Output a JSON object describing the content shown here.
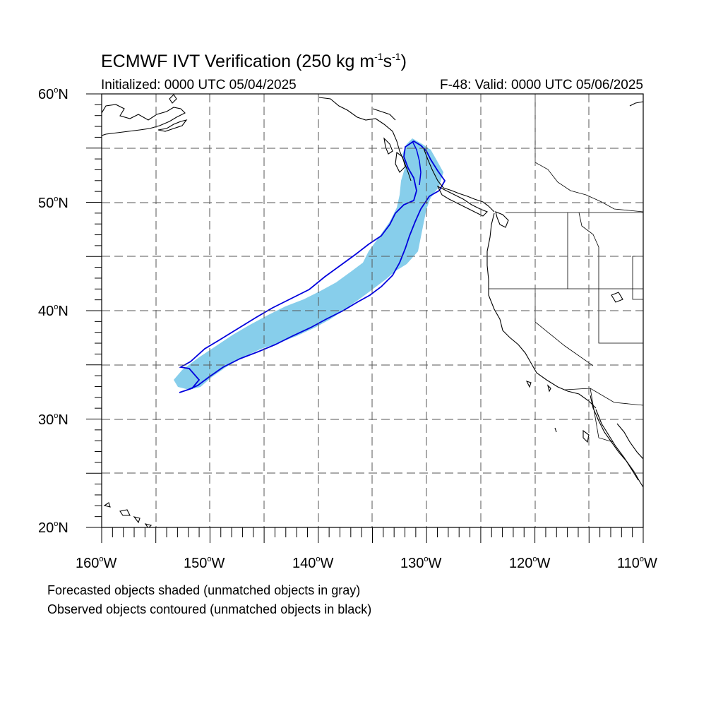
{
  "title": {
    "main": "ECMWF IVT Verification (250 kg m",
    "sup1": "-1",
    "mid": "s",
    "sup2": "-1",
    "end": ")"
  },
  "subtitle": {
    "initialized": "Initialized: 0000 UTC 05/04/2025",
    "valid": "F-48: Valid: 0000 UTC 05/06/2025"
  },
  "axes": {
    "lat_ticks": [
      {
        "value": 60,
        "label": "60",
        "suffix": "N"
      },
      {
        "value": 50,
        "label": "50",
        "suffix": "N"
      },
      {
        "value": 40,
        "label": "40",
        "suffix": "N"
      },
      {
        "value": 30,
        "label": "30",
        "suffix": "N"
      },
      {
        "value": 20,
        "label": "20",
        "suffix": "N"
      }
    ],
    "lon_ticks": [
      {
        "value": -160,
        "label": "160",
        "suffix": "W"
      },
      {
        "value": -150,
        "label": "150",
        "suffix": "W"
      },
      {
        "value": -140,
        "label": "140",
        "suffix": "W"
      },
      {
        "value": -130,
        "label": "130",
        "suffix": "W"
      },
      {
        "value": -120,
        "label": "120",
        "suffix": "W"
      },
      {
        "value": -110,
        "label": "110",
        "suffix": "W"
      }
    ],
    "lat_range": [
      20,
      60
    ],
    "lon_range": [
      -160,
      -110
    ],
    "grid_interval_deg": 5
  },
  "colors": {
    "forecast_fill": "#87ceeb",
    "observed_contour": "#0000dd",
    "coastline": "#000000",
    "grid": "#555555"
  },
  "notes": {
    "line1": "Forecasted objects shaded (unmatched objects in gray)",
    "line2": "Observed objects contoured (unmatched objects in black)"
  }
}
